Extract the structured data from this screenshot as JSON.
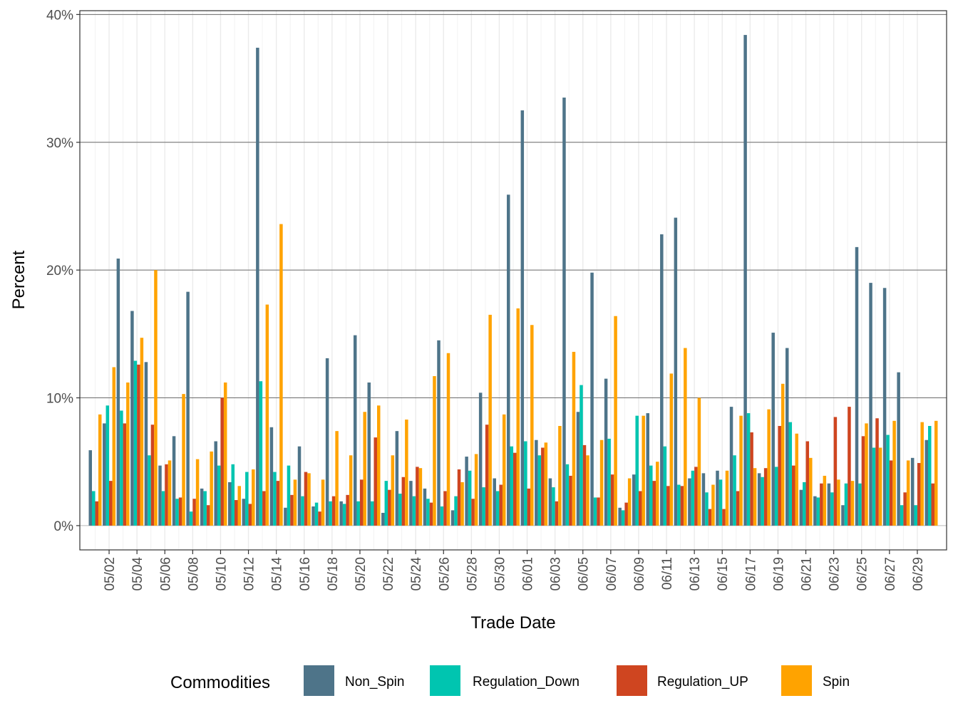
{
  "chart_data": {
    "type": "bar",
    "xlabel": "Trade Date",
    "ylabel": "Percent",
    "ylim": [
      -1.9,
      40.3
    ],
    "yticks": [
      0,
      10,
      20,
      30,
      40
    ],
    "ytick_labels": [
      "0%",
      "10%",
      "20%",
      "30%",
      "40%"
    ],
    "grid": true,
    "legend": {
      "title": "Commodities",
      "position": "bottom"
    },
    "categories": [
      "05/01",
      "05/02",
      "05/03",
      "05/04",
      "05/05",
      "05/06",
      "05/07",
      "05/08",
      "05/09",
      "05/10",
      "05/11",
      "05/12",
      "05/13",
      "05/14",
      "05/15",
      "05/16",
      "05/17",
      "05/18",
      "05/19",
      "05/20",
      "05/21",
      "05/22",
      "05/23",
      "05/24",
      "05/25",
      "05/26",
      "05/27",
      "05/28",
      "05/29",
      "05/30",
      "05/31",
      "06/01",
      "06/02",
      "06/03",
      "06/04",
      "06/05",
      "06/06",
      "06/07",
      "06/08",
      "06/09",
      "06/10",
      "06/11",
      "06/12",
      "06/13",
      "06/14",
      "06/15",
      "06/16",
      "06/17",
      "06/18",
      "06/19",
      "06/20",
      "06/21",
      "06/22",
      "06/23",
      "06/24",
      "06/25",
      "06/26",
      "06/27",
      "06/28",
      "06/29",
      "06/30"
    ],
    "xtick_labels": [
      "05/02",
      "05/04",
      "05/06",
      "05/08",
      "05/10",
      "05/12",
      "05/14",
      "05/16",
      "05/18",
      "05/20",
      "05/22",
      "05/24",
      "05/26",
      "05/28",
      "05/30",
      "06/01",
      "06/03",
      "06/05",
      "06/07",
      "06/09",
      "06/11",
      "06/13",
      "06/15",
      "06/17",
      "06/19",
      "06/21",
      "06/23",
      "06/25",
      "06/27",
      "06/29"
    ],
    "series": [
      {
        "name": "Non_Spin",
        "color": "#4e7489",
        "values": [
          5.9,
          8.0,
          20.9,
          16.8,
          12.8,
          4.7,
          7.0,
          18.3,
          2.9,
          6.6,
          3.4,
          2.1,
          37.4,
          7.7,
          1.4,
          6.2,
          1.5,
          13.1,
          1.9,
          14.9,
          11.2,
          1.0,
          7.4,
          3.5,
          2.9,
          14.5,
          1.2,
          5.4,
          10.4,
          3.7,
          25.9,
          32.5,
          6.7,
          3.7,
          33.5,
          8.9,
          19.8,
          11.5,
          1.4,
          4.0,
          8.8,
          22.8,
          24.1,
          3.7,
          4.1,
          4.3,
          9.3,
          38.4,
          4.1,
          15.1,
          13.9,
          2.8,
          2.3,
          3.3,
          1.6,
          21.8,
          19.0,
          18.6,
          12.0,
          5.3,
          6.7
        ]
      },
      {
        "name": "Regulation_Down",
        "color": "#00c5b0",
        "values": [
          2.7,
          9.4,
          9.0,
          12.9,
          5.5,
          2.7,
          2.1,
          1.1,
          2.7,
          4.7,
          4.8,
          4.2,
          11.3,
          4.2,
          4.7,
          2.3,
          1.8,
          1.9,
          1.7,
          1.9,
          1.9,
          3.5,
          2.5,
          2.3,
          2.1,
          1.5,
          2.3,
          4.3,
          3.0,
          2.7,
          6.2,
          6.6,
          5.5,
          3.0,
          4.8,
          11.0,
          2.2,
          6.8,
          1.2,
          8.6,
          4.7,
          6.2,
          3.2,
          4.3,
          2.6,
          3.6,
          5.5,
          8.8,
          3.8,
          4.6,
          8.1,
          3.4,
          2.2,
          2.6,
          3.3,
          3.3,
          6.1,
          7.1,
          1.6,
          1.6,
          7.8
        ]
      },
      {
        "name": "Regulation_UP",
        "color": "#cf4520",
        "values": [
          1.9,
          3.5,
          8.0,
          12.6,
          7.9,
          4.8,
          2.2,
          2.1,
          1.6,
          10.0,
          2.0,
          1.7,
          2.7,
          3.5,
          2.4,
          4.2,
          1.1,
          2.3,
          2.4,
          3.6,
          6.9,
          2.8,
          3.8,
          4.6,
          1.8,
          2.7,
          4.4,
          2.1,
          7.9,
          3.2,
          5.7,
          2.9,
          6.1,
          1.9,
          3.9,
          6.3,
          2.2,
          4.0,
          1.8,
          2.7,
          3.5,
          3.1,
          3.1,
          4.6,
          1.3,
          1.3,
          2.7,
          7.3,
          4.5,
          7.8,
          4.7,
          6.6,
          3.3,
          8.5,
          9.3,
          7.0,
          8.4,
          5.1,
          2.6,
          4.9,
          3.3
        ]
      },
      {
        "name": "Spin",
        "color": "#ffa300",
        "values": [
          8.7,
          12.4,
          11.2,
          14.7,
          20.0,
          5.1,
          10.3,
          5.2,
          5.8,
          11.2,
          3.1,
          4.4,
          17.3,
          23.6,
          3.6,
          4.1,
          3.6,
          7.4,
          5.5,
          8.9,
          9.4,
          5.5,
          8.3,
          4.5,
          11.7,
          13.5,
          3.4,
          5.6,
          16.5,
          8.7,
          17.0,
          15.7,
          6.5,
          7.8,
          13.6,
          5.5,
          6.7,
          16.4,
          3.7,
          8.6,
          5.0,
          11.9,
          13.9,
          10.0,
          3.2,
          4.3,
          8.6,
          4.5,
          9.1,
          11.1,
          7.2,
          5.3,
          3.9,
          3.6,
          3.5,
          8.0,
          6.1,
          8.2,
          5.1,
          8.1,
          8.2
        ]
      }
    ]
  }
}
